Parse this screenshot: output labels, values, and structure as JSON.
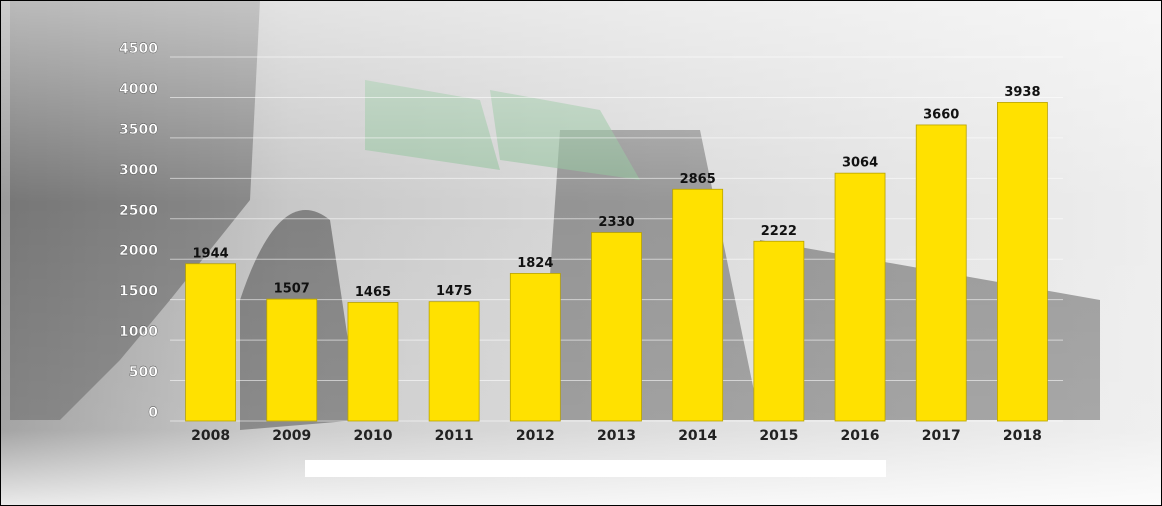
{
  "chart_data": {
    "type": "bar",
    "categories": [
      "2008",
      "2009",
      "2010",
      "2011",
      "2012",
      "2013",
      "2014",
      "2015",
      "2016",
      "2017",
      "2018"
    ],
    "values": [
      1944,
      1507,
      1465,
      1475,
      1824,
      2330,
      2865,
      2222,
      3064,
      3660,
      3938
    ],
    "color": "#ffe100",
    "ylim": [
      0,
      4500
    ],
    "yticks": [
      0,
      500,
      1000,
      1500,
      2000,
      2500,
      3000,
      3500,
      4000,
      4500
    ],
    "grid": true
  }
}
